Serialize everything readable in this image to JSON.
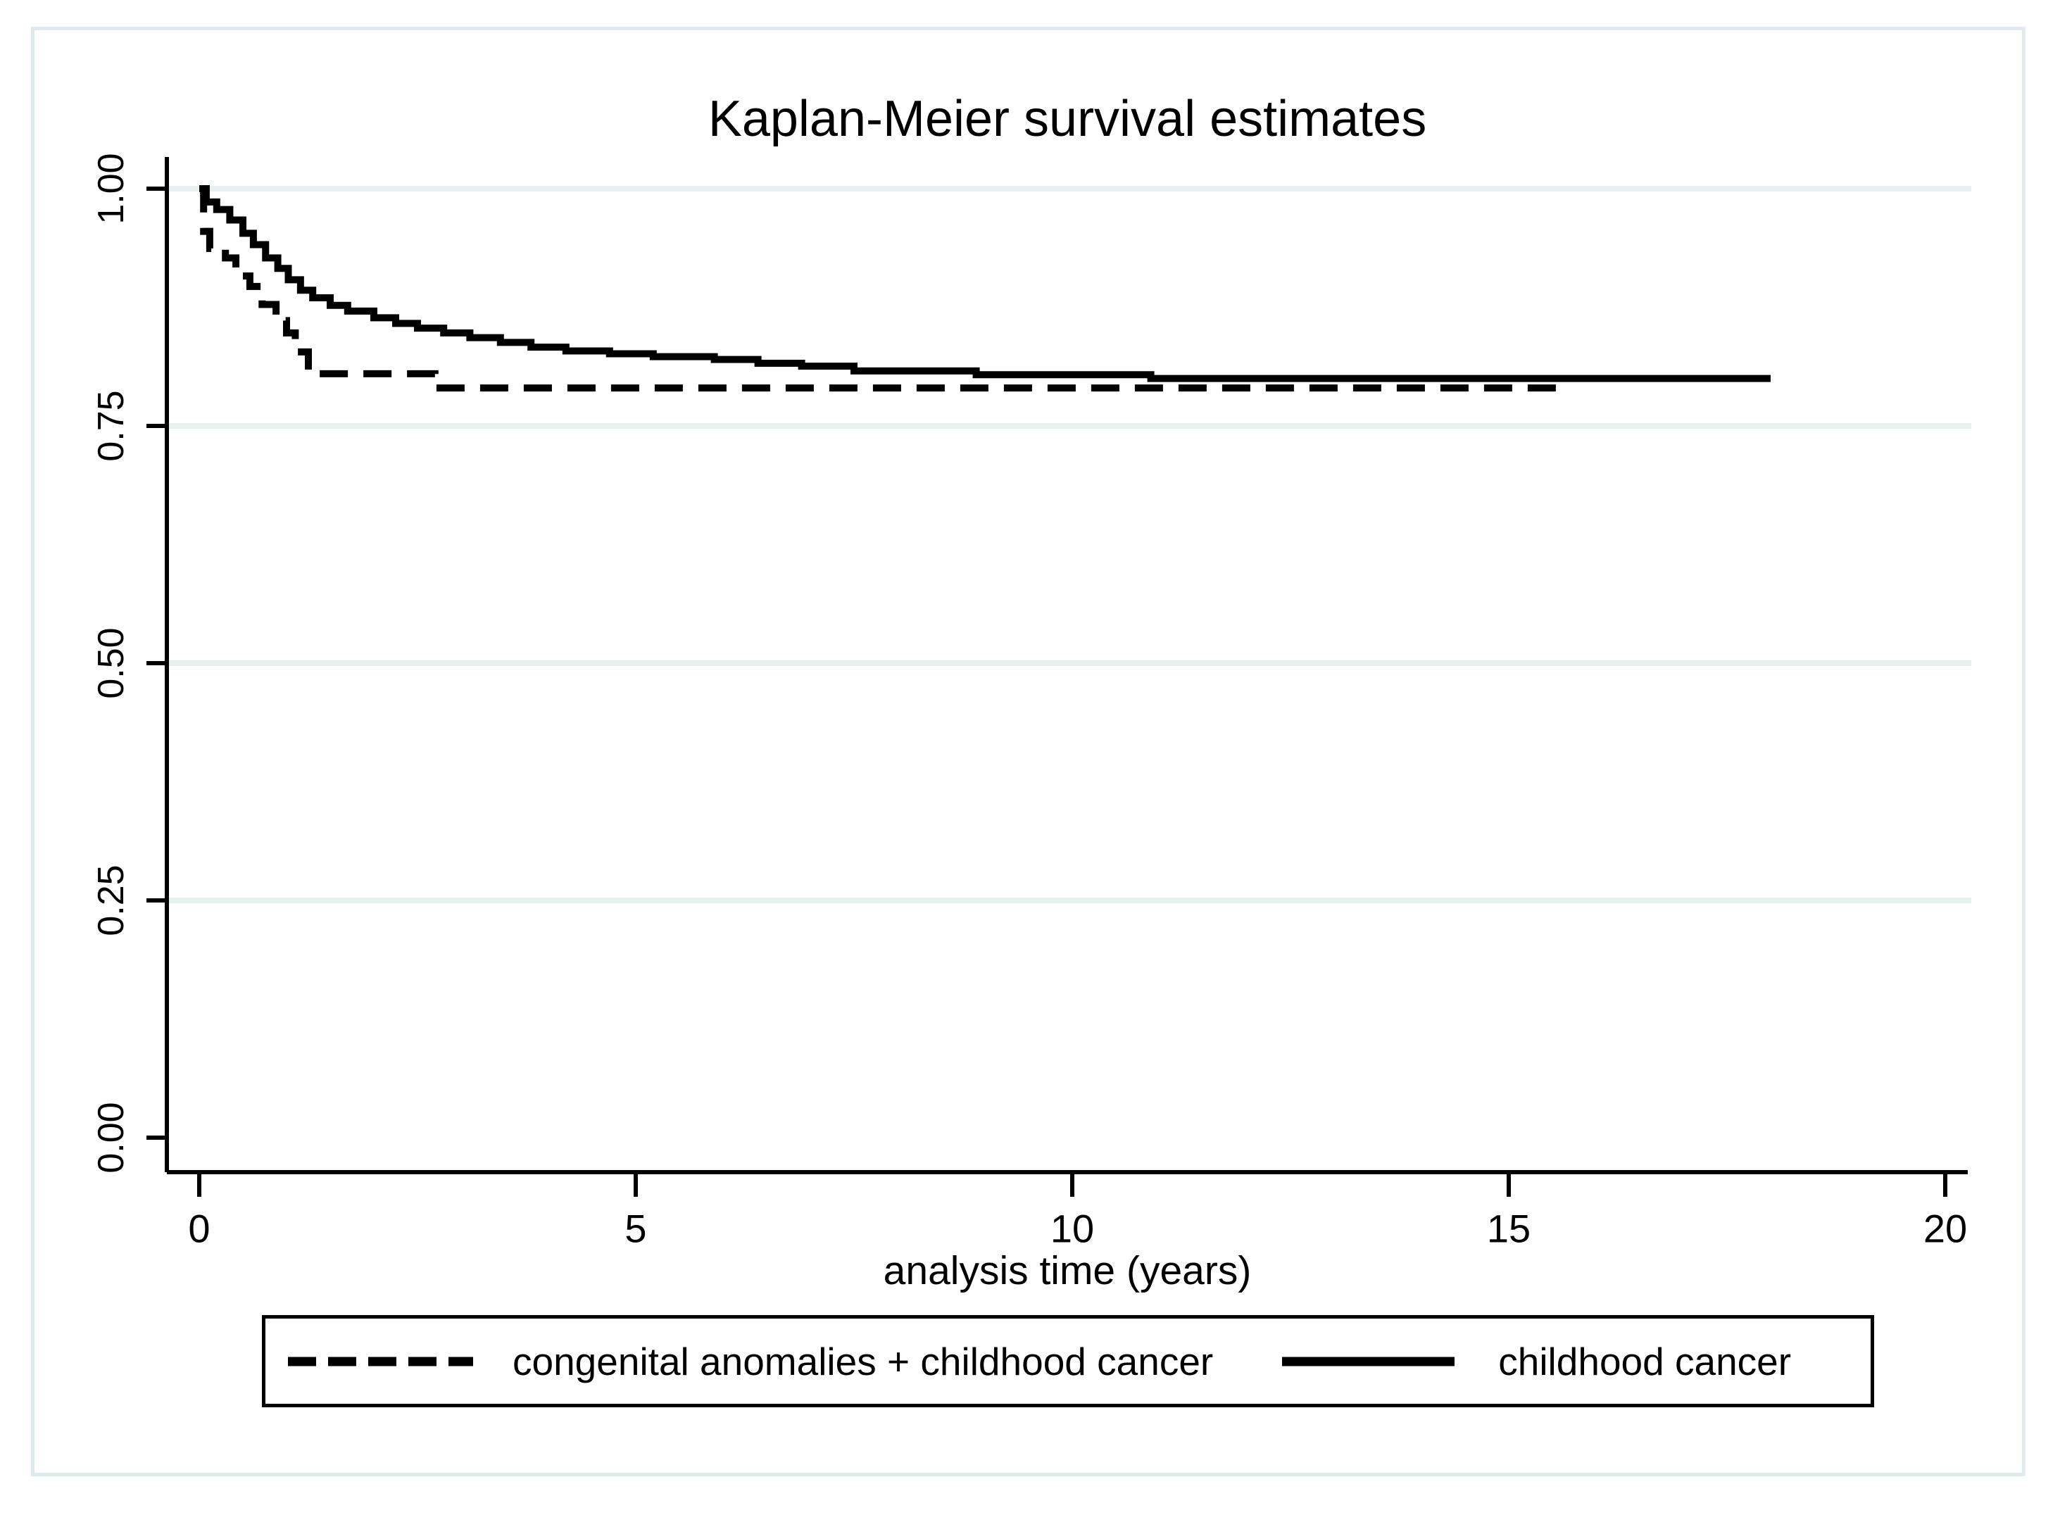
{
  "window": {
    "background": "#ffffff",
    "frame_border_color": "#dfeaed"
  },
  "chart": {
    "title": "Kaplan-Meier survival estimates",
    "xlabel": "analysis time (years)"
  },
  "legend": {
    "entries": [
      {
        "label": "congenital anomalies + childhood cancer",
        "style": "dashed"
      },
      {
        "label": "childhood cancer",
        "style": "solid"
      }
    ]
  },
  "chart_data": {
    "type": "line",
    "subtype": "kaplan-meier-step",
    "title": "Kaplan-Meier survival estimates",
    "xlabel": "analysis time (years)",
    "ylabel": "",
    "xlim": [
      0,
      20
    ],
    "ylim": [
      0.0,
      1.0
    ],
    "x_ticks": [
      0,
      5,
      10,
      15,
      20
    ],
    "y_ticks": [
      0.0,
      0.25,
      0.5,
      0.75,
      1.0
    ],
    "y_tick_labels": [
      "0.00",
      "0.25",
      "0.50",
      "0.75",
      "1.00"
    ],
    "gridlines_at": [
      0.25,
      0.5,
      0.75,
      1.0
    ],
    "grid_on": true,
    "grid_color": "#e8f1f2",
    "line_color": "#000000",
    "legend_position": "bottom",
    "series": [
      {
        "name": "congenital anomalies + childhood cancer",
        "line_style": "dashed",
        "points": [
          [
            0,
            1.0
          ],
          [
            0.05,
            0.955
          ],
          [
            0.12,
            0.937
          ],
          [
            0.3,
            0.927
          ],
          [
            0.42,
            0.908
          ],
          [
            0.58,
            0.897
          ],
          [
            0.72,
            0.878
          ],
          [
            0.88,
            0.861
          ],
          [
            1.0,
            0.848
          ],
          [
            1.1,
            0.828
          ],
          [
            1.25,
            0.805
          ],
          [
            2.7,
            0.79
          ],
          [
            15.7,
            0.79
          ]
        ]
      },
      {
        "name": "childhood cancer",
        "line_style": "solid",
        "points": [
          [
            0,
            1.0
          ],
          [
            0.08,
            0.986
          ],
          [
            0.2,
            0.978
          ],
          [
            0.35,
            0.967
          ],
          [
            0.5,
            0.953
          ],
          [
            0.62,
            0.941
          ],
          [
            0.76,
            0.927
          ],
          [
            0.9,
            0.916
          ],
          [
            1.02,
            0.904
          ],
          [
            1.16,
            0.893
          ],
          [
            1.3,
            0.885
          ],
          [
            1.5,
            0.877
          ],
          [
            1.7,
            0.871
          ],
          [
            2.0,
            0.864
          ],
          [
            2.25,
            0.858
          ],
          [
            2.5,
            0.853
          ],
          [
            2.8,
            0.848
          ],
          [
            3.1,
            0.843
          ],
          [
            3.45,
            0.838
          ],
          [
            3.8,
            0.833
          ],
          [
            4.2,
            0.829
          ],
          [
            4.7,
            0.826
          ],
          [
            5.2,
            0.823
          ],
          [
            5.9,
            0.82
          ],
          [
            6.4,
            0.816
          ],
          [
            6.9,
            0.813
          ],
          [
            7.5,
            0.808
          ],
          [
            8.9,
            0.804
          ],
          [
            10.9,
            0.8
          ],
          [
            18.0,
            0.8
          ]
        ]
      }
    ]
  }
}
